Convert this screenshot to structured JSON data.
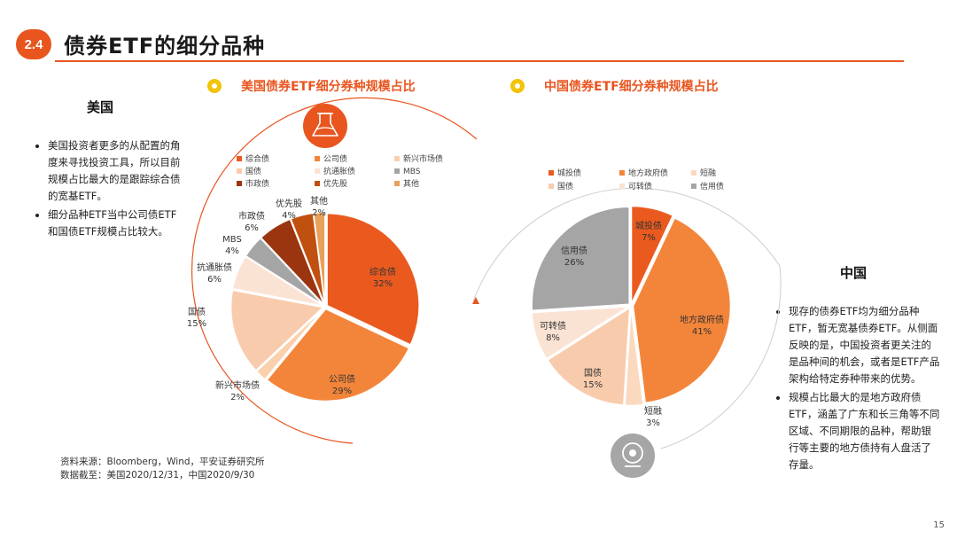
{
  "section": {
    "number": "2.4",
    "title": "债券ETF的细分品种"
  },
  "us": {
    "region_title": "美国",
    "notes": [
      "美国投资者更多的从配置的角度来寻找投资工具，所以目前规模占比最大的是跟踪综合债的宽基ETF。",
      "细分品种ETF当中公司债ETF和国债ETF规模占比较大。"
    ]
  },
  "cn": {
    "region_title": "中国",
    "notes": [
      "现存的债券ETF均为细分品种ETF，暂无宽基债券ETF。从侧面反映的是，中国投资者更关注的是品种间的机会，或者是ETF产品架构给特定券种带来的优势。",
      "规模占比最大的是地方政府债ETF，涵盖了广东和长三角等不同区域、不同期限的品种，帮助银行等主要的地方债持有人盘活了存量。"
    ]
  },
  "source": {
    "line1": "资料来源：Bloomberg，Wind，平安证券研究所",
    "line2": "数据截至：美国2020/12/31，中国2020/9/30"
  },
  "page_number": "15",
  "colors": {
    "accent": "#e8551f",
    "icon_yellow": "#f2c200",
    "icon_gray": "#a6a6a6"
  },
  "icons": {
    "us": "flask-icon",
    "cn": "webcam-icon"
  },
  "chart_data": [
    {
      "type": "pie",
      "title": "美国债券ETF细分券种规模占比",
      "categories": [
        "综合债",
        "公司债",
        "新兴市场债",
        "国债",
        "抗通胀债",
        "MBS",
        "市政债",
        "优先股",
        "其他"
      ],
      "values": [
        32,
        29,
        2,
        15,
        6,
        4,
        6,
        4,
        2
      ],
      "labels": [
        "32%",
        "29%",
        "2%",
        "15%",
        "6%",
        "4%",
        "6%",
        "4%",
        "2%"
      ],
      "colors": [
        "#ea5a1f",
        "#f3853a",
        "#fbd0ac",
        "#f9cbad",
        "#fbe3d4",
        "#a5a5a5",
        "#9a3510",
        "#c0500f",
        "#e8a05a"
      ],
      "legend": "top"
    },
    {
      "type": "pie",
      "title": "中国债券ETF细分券种规模占比",
      "categories": [
        "城投债",
        "地方政府债",
        "短融",
        "国债",
        "可转债",
        "信用债"
      ],
      "values": [
        7,
        41,
        3,
        15,
        8,
        26
      ],
      "labels": [
        "7%",
        "41%",
        "3%",
        "15%",
        "8%",
        "26%"
      ],
      "colors": [
        "#ea5a1f",
        "#f3853a",
        "#fbd9bf",
        "#f9cbad",
        "#fbe3d4",
        "#a5a5a5"
      ],
      "legend": "top"
    }
  ]
}
